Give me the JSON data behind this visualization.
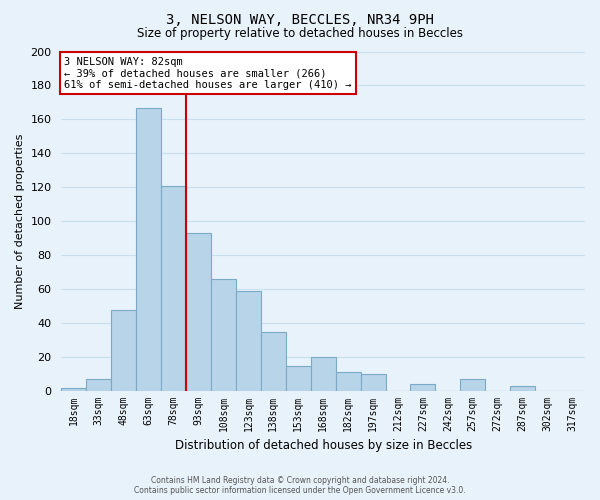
{
  "title": "3, NELSON WAY, BECCLES, NR34 9PH",
  "subtitle": "Size of property relative to detached houses in Beccles",
  "bar_labels": [
    "18sqm",
    "33sqm",
    "48sqm",
    "63sqm",
    "78sqm",
    "93sqm",
    "108sqm",
    "123sqm",
    "138sqm",
    "153sqm",
    "168sqm",
    "182sqm",
    "197sqm",
    "212sqm",
    "227sqm",
    "242sqm",
    "257sqm",
    "272sqm",
    "287sqm",
    "302sqm",
    "317sqm"
  ],
  "bar_values": [
    2,
    7,
    48,
    167,
    121,
    93,
    66,
    59,
    35,
    15,
    20,
    11,
    10,
    0,
    4,
    0,
    7,
    0,
    3,
    0,
    0
  ],
  "bar_color": "#b8d4e8",
  "bar_edge_color": "#7aaac8",
  "grid_color": "#c8dff0",
  "background_color": "#e8f2fa",
  "vline_x": 4.5,
  "vline_color": "#cc0000",
  "ylabel": "Number of detached properties",
  "xlabel": "Distribution of detached houses by size in Beccles",
  "ylim": [
    0,
    200
  ],
  "yticks": [
    0,
    20,
    40,
    60,
    80,
    100,
    120,
    140,
    160,
    180,
    200
  ],
  "annotation_title": "3 NELSON WAY: 82sqm",
  "annotation_line1": "← 39% of detached houses are smaller (266)",
  "annotation_line2": "61% of semi-detached houses are larger (410) →",
  "footer_line1": "Contains HM Land Registry data © Crown copyright and database right 2024.",
  "footer_line2": "Contains public sector information licensed under the Open Government Licence v3.0."
}
